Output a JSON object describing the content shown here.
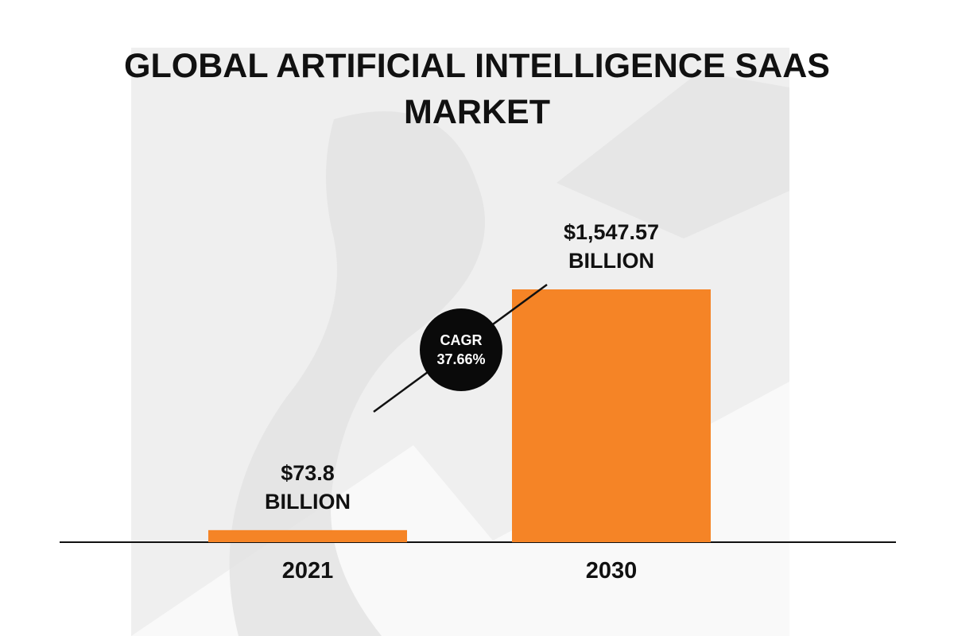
{
  "chart_data": {
    "type": "bar",
    "title": "GLOBAL ARTIFICIAL INTELLIGENCE SAAS MARKET",
    "categories": [
      "2021",
      "2030"
    ],
    "values": [
      73.8,
      1547.57
    ],
    "value_labels": [
      "$73.8 BILLION",
      "$1,547.57 BILLION"
    ],
    "color": "#f58426",
    "annotation": "CAGR 37.66%"
  }
}
